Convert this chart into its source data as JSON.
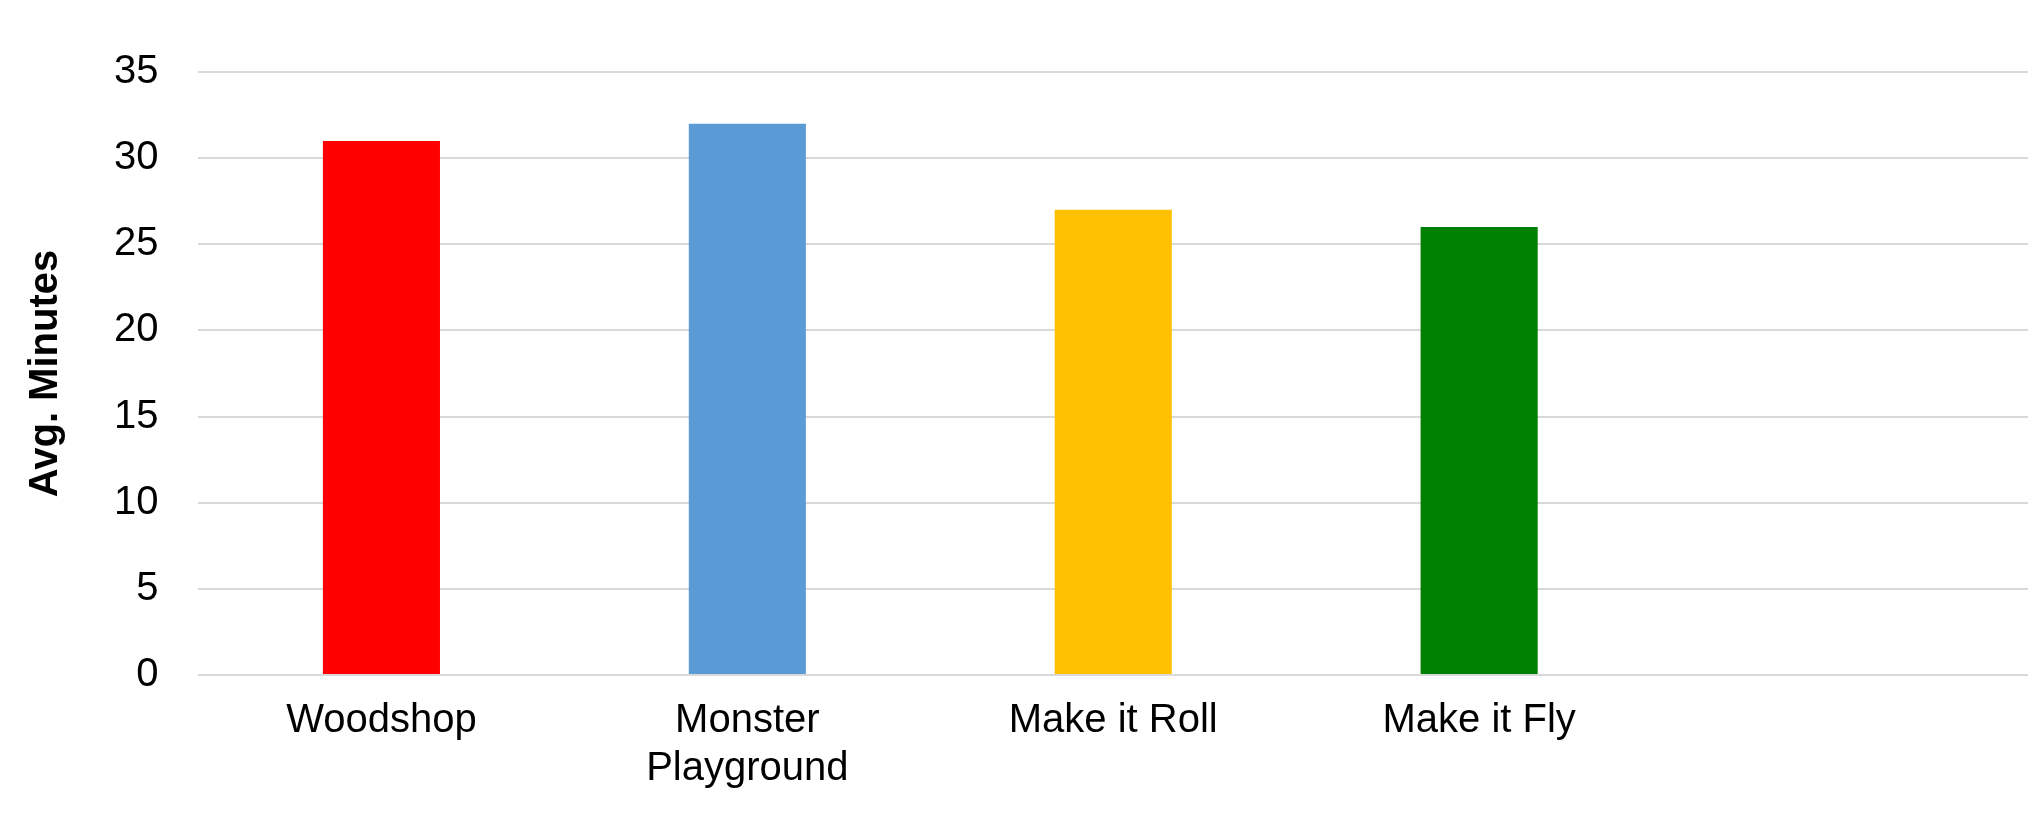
{
  "chart_data": {
    "type": "bar",
    "ylabel": "Avg. Minutes",
    "categories": [
      "Woodshop",
      "Monster Playground",
      "Make it Roll",
      "Make it Fly",
      null
    ],
    "values": [
      31,
      32,
      27,
      26,
      null
    ],
    "colors": [
      "#ff0000",
      "#5b9bd5",
      "#ffc000",
      "#008000",
      null
    ],
    "ylim": [
      0,
      35
    ],
    "yticks": [
      0,
      5,
      10,
      15,
      20,
      25,
      30,
      35
    ],
    "grid": "y"
  }
}
